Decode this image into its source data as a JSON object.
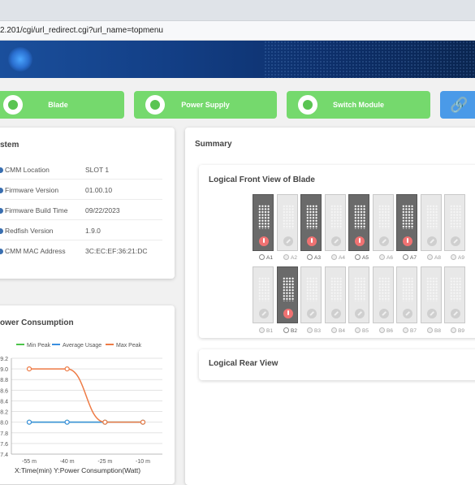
{
  "browser": {
    "url": "2.201/cgi/url_redirect.cgi?url_name=topmenu"
  },
  "tiles": [
    {
      "label": "Blade",
      "icon": "blade-icon"
    },
    {
      "label": "Power Supply",
      "icon": "power-supply-icon"
    },
    {
      "label": "Switch Module",
      "icon": "switch-module-icon"
    },
    {
      "label": "",
      "icon": "link-icon"
    }
  ],
  "system": {
    "title": "stem",
    "rows": [
      {
        "key": "CMM Location",
        "value": "SLOT 1"
      },
      {
        "key": "Firmware Version",
        "value": "01.00.10"
      },
      {
        "key": "Firmware Build Time",
        "value": "09/22/2023"
      },
      {
        "key": "Redfish Version",
        "value": "1.9.0"
      },
      {
        "key": "CMM MAC Address",
        "value": "3C:EC:EF:36:21:DC"
      }
    ]
  },
  "power": {
    "title": "ower Consumption",
    "legend": [
      "Min Peak",
      "Average Usage",
      "Max Peak"
    ],
    "footer": "X:Time(min) Y:Power Consumption(Watt)",
    "colors": {
      "min": "#4cc44a",
      "avg": "#3a8fe0",
      "max": "#ee7b45"
    }
  },
  "chart_data": {
    "type": "line",
    "categories": [
      "-55 m",
      "-40 m",
      "-25 m",
      "-10 m"
    ],
    "series": [
      {
        "name": "Min Peak",
        "values": [
          8.0,
          8.0,
          8.0,
          8.0
        ]
      },
      {
        "name": "Average Usage",
        "values": [
          8.0,
          8.0,
          8.0,
          8.0
        ]
      },
      {
        "name": "Max Peak",
        "values": [
          9.0,
          9.0,
          8.0,
          8.0
        ]
      }
    ],
    "yticks": [
      "7.4",
      "7.6",
      "7.8",
      "8.0",
      "8.2",
      "8.4",
      "8.6",
      "8.8",
      "9.0",
      "9.2"
    ],
    "ylim": [
      7.4,
      9.2
    ]
  },
  "summary": {
    "title": "Summary",
    "front_title": "Logical Front View of Blade",
    "rear_title": "Logical Rear View",
    "row_a": [
      {
        "label": "A1",
        "on": true
      },
      {
        "label": "A2",
        "on": false
      },
      {
        "label": "A3",
        "on": true
      },
      {
        "label": "A4",
        "on": false
      },
      {
        "label": "A5",
        "on": true
      },
      {
        "label": "A6",
        "on": false
      },
      {
        "label": "A7",
        "on": true
      },
      {
        "label": "A8",
        "on": false
      },
      {
        "label": "A9",
        "on": false
      }
    ],
    "row_b": [
      {
        "label": "B1",
        "on": false
      },
      {
        "label": "B2",
        "on": true
      },
      {
        "label": "B3",
        "on": false
      },
      {
        "label": "B4",
        "on": false
      },
      {
        "label": "B5",
        "on": false
      },
      {
        "label": "B6",
        "on": false
      },
      {
        "label": "B7",
        "on": false
      },
      {
        "label": "B8",
        "on": false
      },
      {
        "label": "B9",
        "on": false
      }
    ]
  }
}
